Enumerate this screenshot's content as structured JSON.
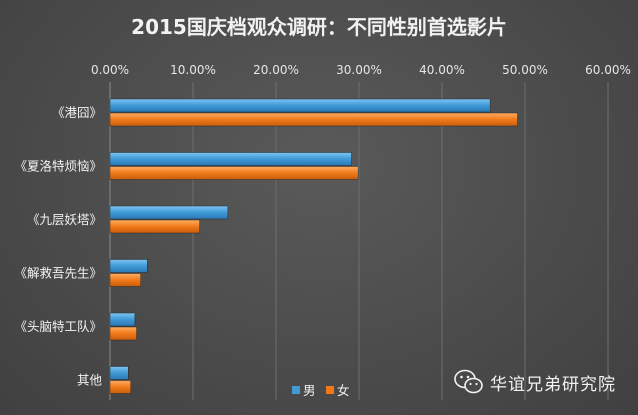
{
  "chart_data": {
    "type": "bar",
    "orientation": "horizontal",
    "title": "2015国庆档观众调研：不同性别首选影片",
    "categories": [
      "《港囧》",
      "《夏洛特烦恼》",
      "《九层妖塔》",
      "《解救吾先生》",
      "《头脑特工队》",
      "其他"
    ],
    "series": [
      {
        "name": "男",
        "color": "#3f9ad6",
        "values": [
          45.8,
          29.1,
          14.2,
          4.5,
          3.0,
          2.2
        ]
      },
      {
        "name": "女",
        "color": "#f07a1a",
        "values": [
          49.1,
          29.9,
          10.8,
          3.7,
          3.2,
          2.5
        ]
      }
    ],
    "xlim": [
      0,
      60
    ],
    "xticks": [
      0,
      10,
      20,
      30,
      40,
      50,
      60
    ],
    "tick_labels": [
      "0.00%",
      "10.00%",
      "20.00%",
      "30.00%",
      "40.00%",
      "50.00%",
      "60.00%"
    ],
    "axis_position": "top",
    "grid": true,
    "legend": "bottom-center"
  },
  "watermark": {
    "icon": "wechat-icon",
    "text": "华谊兄弟研究院"
  }
}
